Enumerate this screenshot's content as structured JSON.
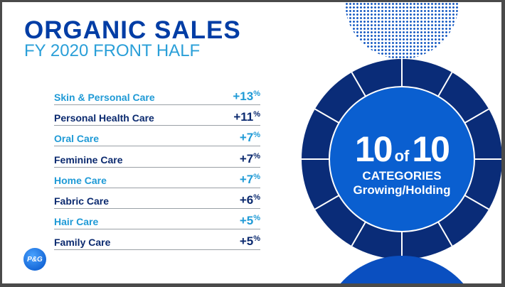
{
  "title": "ORGANIC SALES",
  "subtitle": "FY 2020 FRONT HALF",
  "rows": [
    {
      "label": "Skin & Personal Care",
      "value": "+13",
      "unit": "%"
    },
    {
      "label": "Personal Health Care",
      "value": "+11",
      "unit": "%"
    },
    {
      "label": "Oral Care",
      "value": "+7",
      "unit": "%"
    },
    {
      "label": "Feminine Care",
      "value": "+7",
      "unit": "%"
    },
    {
      "label": "Home Care",
      "value": "+7",
      "unit": "%"
    },
    {
      "label": "Fabric Care",
      "value": "+6",
      "unit": "%"
    },
    {
      "label": "Hair Care",
      "value": "+5",
      "unit": "%"
    },
    {
      "label": "Family Care",
      "value": "+5",
      "unit": "%"
    }
  ],
  "badge": {
    "count": "10",
    "of": "of",
    "total": "10",
    "line1": "CATEGORIES",
    "line2": "Growing/Holding"
  },
  "logo": "P&G",
  "colors": {
    "dark_blue": "#0b2a6f",
    "light_blue": "#1f9ad6",
    "ring": "#0a2c78",
    "center": "#0a5fd0"
  }
}
